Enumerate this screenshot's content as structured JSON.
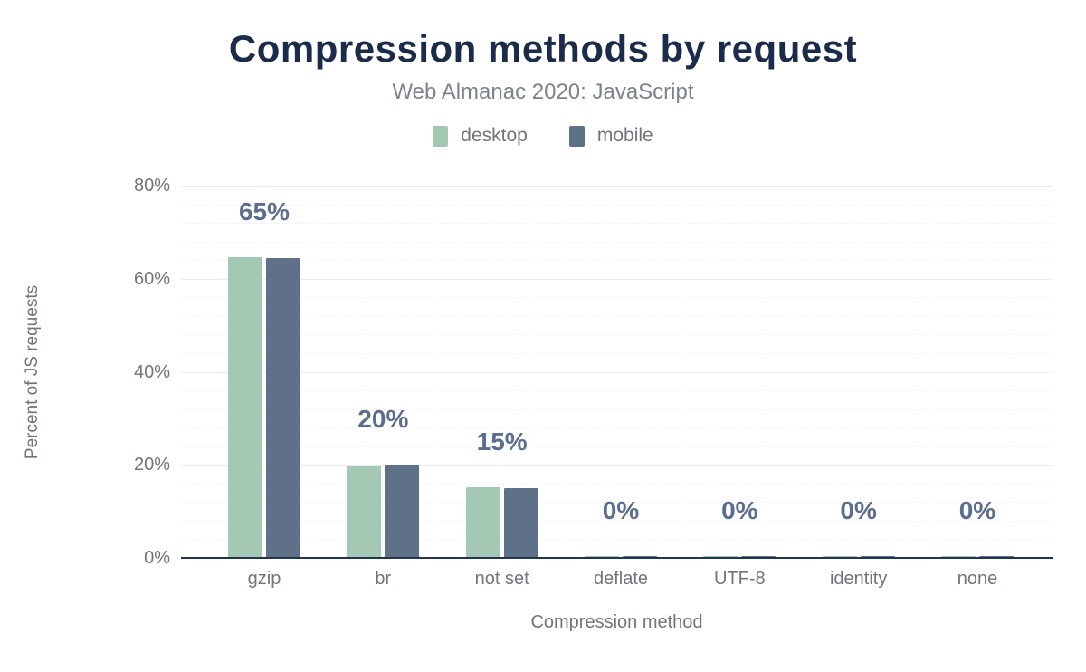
{
  "chart_data": {
    "type": "bar",
    "title": "Compression methods by request",
    "subtitle": "Web Almanac 2020: JavaScript",
    "xlabel": "Compression method",
    "ylabel": "Percent of JS requests",
    "categories": [
      "gzip",
      "br",
      "not set",
      "deflate",
      "UTF-8",
      "identity",
      "none"
    ],
    "series": [
      {
        "name": "desktop",
        "color": "#a3c9b4",
        "values": [
          64.6,
          19.9,
          15.1,
          0.1,
          0.1,
          0.1,
          0.1
        ]
      },
      {
        "name": "mobile",
        "color": "#5f7189",
        "values": [
          64.4,
          20.0,
          15.0,
          0.1,
          0.1,
          0.1,
          0.1
        ]
      }
    ],
    "data_labels": [
      "65%",
      "20%",
      "15%",
      "0%",
      "0%",
      "0%",
      "0%"
    ],
    "y_ticks": [
      {
        "value": 0,
        "label": "0%"
      },
      {
        "value": 20,
        "label": "20%"
      },
      {
        "value": 40,
        "label": "40%"
      },
      {
        "value": 60,
        "label": "60%"
      },
      {
        "value": 80,
        "label": "80%"
      }
    ],
    "ylim": [
      0,
      80
    ],
    "minor_grid_step": 4,
    "grid": true,
    "legend_position": "top",
    "colors": {
      "title": "#1b2b4a",
      "subtitle": "#7d838d",
      "axis_text": "#70757e",
      "data_label": "#5b6e8e",
      "axis_line": "#223550",
      "major_grid": "#ededed",
      "minor_grid": "#f2f2f2",
      "background": "#ffffff"
    }
  }
}
